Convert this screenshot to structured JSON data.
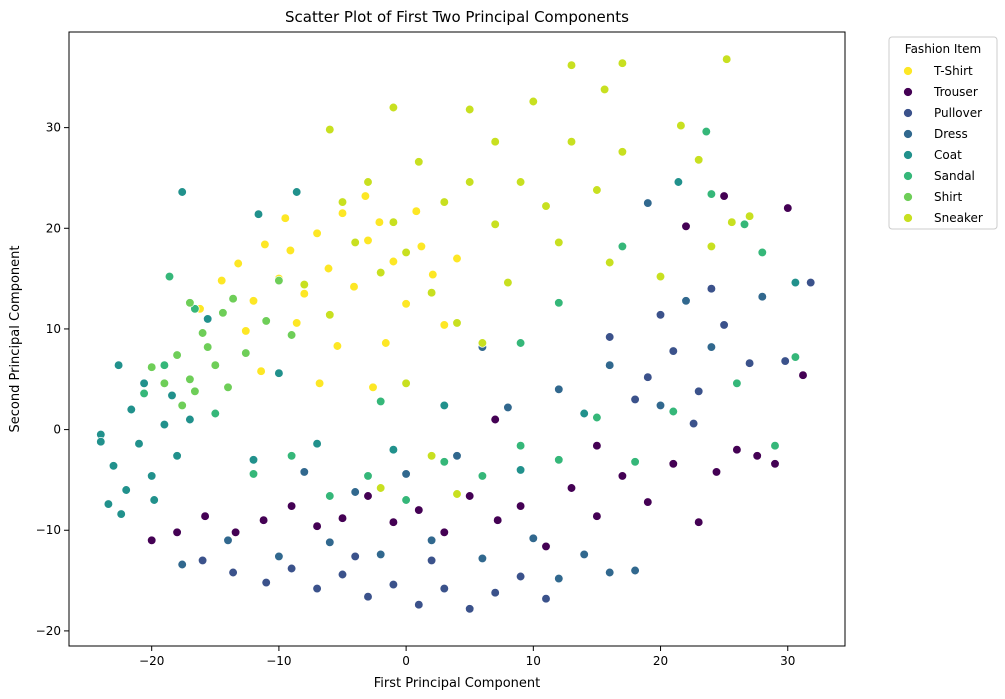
{
  "chart_data": {
    "type": "scatter",
    "title": "Scatter Plot of First Two Principal Components",
    "xlabel": "First Principal Component",
    "ylabel": "Second Principal Component",
    "xlim": [
      -26.5,
      34.5
    ],
    "ylim": [
      -21.5,
      39.5
    ],
    "xticks": [
      -20,
      -10,
      0,
      10,
      20,
      30
    ],
    "yticks": [
      -20,
      -10,
      0,
      10,
      20,
      30
    ],
    "grid": false,
    "legend": {
      "title": "Fashion Item",
      "placement": "outside-upper-right"
    },
    "series": [
      {
        "name": "T-Shirt",
        "color": "#fde725",
        "points": [
          [
            -14.5,
            14.8
          ],
          [
            -13.2,
            16.5
          ],
          [
            -12.0,
            12.8
          ],
          [
            -11.1,
            18.4
          ],
          [
            -10.0,
            15.0
          ],
          [
            -9.1,
            17.8
          ],
          [
            -8.0,
            13.5
          ],
          [
            -7.0,
            19.5
          ],
          [
            -6.1,
            16.0
          ],
          [
            -5.0,
            21.5
          ],
          [
            -4.1,
            14.2
          ],
          [
            -3.0,
            18.8
          ],
          [
            -2.1,
            20.6
          ],
          [
            -1.0,
            16.7
          ],
          [
            0.0,
            12.5
          ],
          [
            1.2,
            18.2
          ],
          [
            2.1,
            15.4
          ],
          [
            3.0,
            10.4
          ],
          [
            -12.6,
            9.8
          ],
          [
            -8.6,
            10.6
          ],
          [
            -5.4,
            8.3
          ],
          [
            -1.6,
            8.6
          ],
          [
            -11.4,
            5.8
          ],
          [
            -6.8,
            4.6
          ],
          [
            -3.2,
            23.2
          ],
          [
            -16.2,
            12.0
          ],
          [
            -2.6,
            4.2
          ],
          [
            0.8,
            21.7
          ],
          [
            4.0,
            17.0
          ],
          [
            -9.5,
            21.0
          ]
        ]
      },
      {
        "name": "Trouser",
        "color": "#440154",
        "points": [
          [
            -20.0,
            -11.0
          ],
          [
            -18.0,
            -10.2
          ],
          [
            -15.8,
            -8.6
          ],
          [
            -13.4,
            -10.2
          ],
          [
            -11.2,
            -9.0
          ],
          [
            -9.0,
            -7.6
          ],
          [
            -7.0,
            -9.6
          ],
          [
            -5.0,
            -8.8
          ],
          [
            -3.0,
            -6.6
          ],
          [
            -1.0,
            -9.2
          ],
          [
            1.0,
            -8.0
          ],
          [
            3.0,
            -10.2
          ],
          [
            5.0,
            -6.6
          ],
          [
            7.2,
            -9.0
          ],
          [
            9.0,
            -7.6
          ],
          [
            11.0,
            -11.6
          ],
          [
            13.0,
            -5.8
          ],
          [
            15.0,
            -8.6
          ],
          [
            17.0,
            -4.6
          ],
          [
            19.0,
            -7.2
          ],
          [
            21.0,
            -3.4
          ],
          [
            23.0,
            -9.2
          ],
          [
            24.4,
            -4.2
          ],
          [
            26.0,
            -2.0
          ],
          [
            27.6,
            -2.6
          ],
          [
            29.0,
            -3.4
          ],
          [
            22.0,
            20.2
          ],
          [
            25.0,
            23.2
          ],
          [
            30.0,
            22.0
          ],
          [
            31.2,
            5.4
          ],
          [
            7.0,
            1.0
          ],
          [
            15.0,
            -1.6
          ]
        ]
      },
      {
        "name": "Pullover",
        "color": "#3b528b",
        "points": [
          [
            -16.0,
            -13.0
          ],
          [
            -13.6,
            -14.2
          ],
          [
            -11.0,
            -15.2
          ],
          [
            -9.0,
            -13.8
          ],
          [
            -7.0,
            -15.8
          ],
          [
            -5.0,
            -14.4
          ],
          [
            -3.0,
            -16.6
          ],
          [
            -1.0,
            -15.4
          ],
          [
            1.0,
            -17.4
          ],
          [
            3.0,
            -15.8
          ],
          [
            5.0,
            -17.8
          ],
          [
            7.0,
            -16.2
          ],
          [
            9.0,
            -14.6
          ],
          [
            11.0,
            -16.8
          ],
          [
            -4.0,
            -12.6
          ],
          [
            2.0,
            -13.0
          ],
          [
            19.0,
            5.2
          ],
          [
            21.0,
            7.8
          ],
          [
            23.0,
            3.8
          ],
          [
            25.0,
            10.4
          ],
          [
            27.0,
            6.6
          ],
          [
            20.0,
            11.4
          ],
          [
            16.0,
            9.2
          ],
          [
            24.0,
            14.0
          ],
          [
            18.0,
            3.0
          ],
          [
            29.8,
            6.8
          ],
          [
            31.8,
            14.6
          ],
          [
            22.6,
            0.6
          ]
        ]
      },
      {
        "name": "Dress",
        "color": "#31688e",
        "points": [
          [
            -14.0,
            -11.0
          ],
          [
            -10.0,
            -12.6
          ],
          [
            -6.0,
            -11.2
          ],
          [
            -2.0,
            -12.4
          ],
          [
            2.0,
            -11.0
          ],
          [
            6.0,
            -12.8
          ],
          [
            10.0,
            -10.8
          ],
          [
            14.0,
            -12.4
          ],
          [
            16.0,
            -14.2
          ],
          [
            12.0,
            -14.8
          ],
          [
            8.0,
            2.2
          ],
          [
            12.0,
            4.0
          ],
          [
            16.0,
            6.4
          ],
          [
            20.0,
            2.4
          ],
          [
            24.0,
            8.2
          ],
          [
            4.0,
            -2.6
          ],
          [
            0.0,
            -4.4
          ],
          [
            -4.0,
            -6.2
          ],
          [
            -8.0,
            -4.2
          ],
          [
            22.0,
            12.8
          ],
          [
            28.0,
            13.2
          ],
          [
            19.0,
            22.5
          ],
          [
            18.0,
            -14.0
          ],
          [
            -17.6,
            -13.4
          ],
          [
            6.0,
            8.2
          ]
        ]
      },
      {
        "name": "Coat",
        "color": "#21918c",
        "points": [
          [
            -24.0,
            -0.5
          ],
          [
            -23.0,
            -3.6
          ],
          [
            -22.0,
            -6.0
          ],
          [
            -21.0,
            -1.4
          ],
          [
            -21.6,
            2.0
          ],
          [
            -20.0,
            -4.6
          ],
          [
            -20.6,
            4.6
          ],
          [
            -19.0,
            0.5
          ],
          [
            -18.0,
            -2.6
          ],
          [
            -18.4,
            3.4
          ],
          [
            -17.0,
            1.0
          ],
          [
            -23.4,
            -7.4
          ],
          [
            -22.4,
            -8.4
          ],
          [
            -19.8,
            -7.0
          ],
          [
            -22.6,
            6.4
          ],
          [
            -24.0,
            -1.2
          ],
          [
            -12.0,
            -3.0
          ],
          [
            -7.0,
            -1.4
          ],
          [
            -1.0,
            -2.0
          ],
          [
            3.0,
            2.4
          ],
          [
            9.0,
            -4.0
          ],
          [
            14.0,
            1.6
          ],
          [
            -15.6,
            11.0
          ],
          [
            -10.0,
            5.6
          ],
          [
            -11.6,
            21.4
          ],
          [
            -17.6,
            23.6
          ],
          [
            21.4,
            24.6
          ],
          [
            30.6,
            14.6
          ],
          [
            -8.6,
            23.6
          ]
        ]
      },
      {
        "name": "Sandal",
        "color": "#35b779",
        "points": [
          [
            -20.6,
            3.6
          ],
          [
            -19.0,
            6.4
          ],
          [
            -15.0,
            1.6
          ],
          [
            -12.0,
            -4.4
          ],
          [
            -9.0,
            -2.6
          ],
          [
            -6.0,
            -6.6
          ],
          [
            -3.0,
            -4.6
          ],
          [
            0.0,
            -7.0
          ],
          [
            3.0,
            -3.2
          ],
          [
            6.0,
            -4.6
          ],
          [
            9.0,
            -1.6
          ],
          [
            12.0,
            -3.0
          ],
          [
            15.0,
            1.2
          ],
          [
            18.0,
            -3.2
          ],
          [
            21.0,
            1.8
          ],
          [
            26.0,
            4.6
          ],
          [
            29.0,
            -1.6
          ],
          [
            23.6,
            29.6
          ],
          [
            28.0,
            17.6
          ],
          [
            24.0,
            23.4
          ],
          [
            -18.6,
            15.2
          ],
          [
            -16.6,
            12.0
          ],
          [
            9.0,
            8.6
          ],
          [
            17.0,
            18.2
          ],
          [
            12.0,
            12.6
          ],
          [
            30.6,
            7.2
          ],
          [
            26.6,
            20.4
          ],
          [
            -2.0,
            2.8
          ]
        ]
      },
      {
        "name": "Shirt",
        "color": "#6ece58",
        "points": [
          [
            -19.0,
            4.6
          ],
          [
            -18.0,
            7.4
          ],
          [
            -17.0,
            5.0
          ],
          [
            -16.0,
            9.6
          ],
          [
            -15.0,
            6.4
          ],
          [
            -14.4,
            11.6
          ],
          [
            -17.6,
            2.4
          ],
          [
            -16.6,
            3.8
          ],
          [
            -20.0,
            6.2
          ],
          [
            -15.6,
            8.2
          ],
          [
            -13.6,
            13.0
          ],
          [
            -12.6,
            7.6
          ],
          [
            -11.0,
            10.8
          ],
          [
            -10.0,
            14.8
          ],
          [
            -9.0,
            9.4
          ],
          [
            -17.0,
            12.6
          ],
          [
            -14.0,
            4.2
          ]
        ]
      },
      {
        "name": "Sneaker",
        "color": "#c8e020",
        "points": [
          [
            -5.0,
            22.6
          ],
          [
            -3.0,
            24.6
          ],
          [
            -1.0,
            20.6
          ],
          [
            1.0,
            26.6
          ],
          [
            3.0,
            22.6
          ],
          [
            5.0,
            24.6
          ],
          [
            7.0,
            20.4
          ],
          [
            9.0,
            24.6
          ],
          [
            11.0,
            22.2
          ],
          [
            13.0,
            28.6
          ],
          [
            15.0,
            23.8
          ],
          [
            17.0,
            27.6
          ],
          [
            13.0,
            36.2
          ],
          [
            15.6,
            33.8
          ],
          [
            17.0,
            36.4
          ],
          [
            25.2,
            36.8
          ],
          [
            21.6,
            30.2
          ],
          [
            23.0,
            26.8
          ],
          [
            -1.0,
            32.0
          ],
          [
            -6.0,
            29.8
          ],
          [
            5.0,
            31.8
          ],
          [
            10.0,
            32.6
          ],
          [
            7.0,
            28.6
          ],
          [
            -4.0,
            18.6
          ],
          [
            -2.0,
            15.6
          ],
          [
            0.0,
            17.6
          ],
          [
            2.0,
            13.6
          ],
          [
            4.0,
            10.6
          ],
          [
            6.0,
            8.6
          ],
          [
            0.0,
            4.6
          ],
          [
            2.0,
            -2.6
          ],
          [
            4.0,
            -6.4
          ],
          [
            -2.0,
            -5.8
          ],
          [
            16.0,
            16.6
          ],
          [
            12.0,
            18.6
          ],
          [
            8.0,
            14.6
          ],
          [
            -8.0,
            14.4
          ],
          [
            -6.0,
            11.4
          ],
          [
            20.0,
            15.2
          ],
          [
            27.0,
            21.2
          ],
          [
            25.6,
            20.6
          ],
          [
            24.0,
            18.2
          ]
        ]
      }
    ]
  }
}
